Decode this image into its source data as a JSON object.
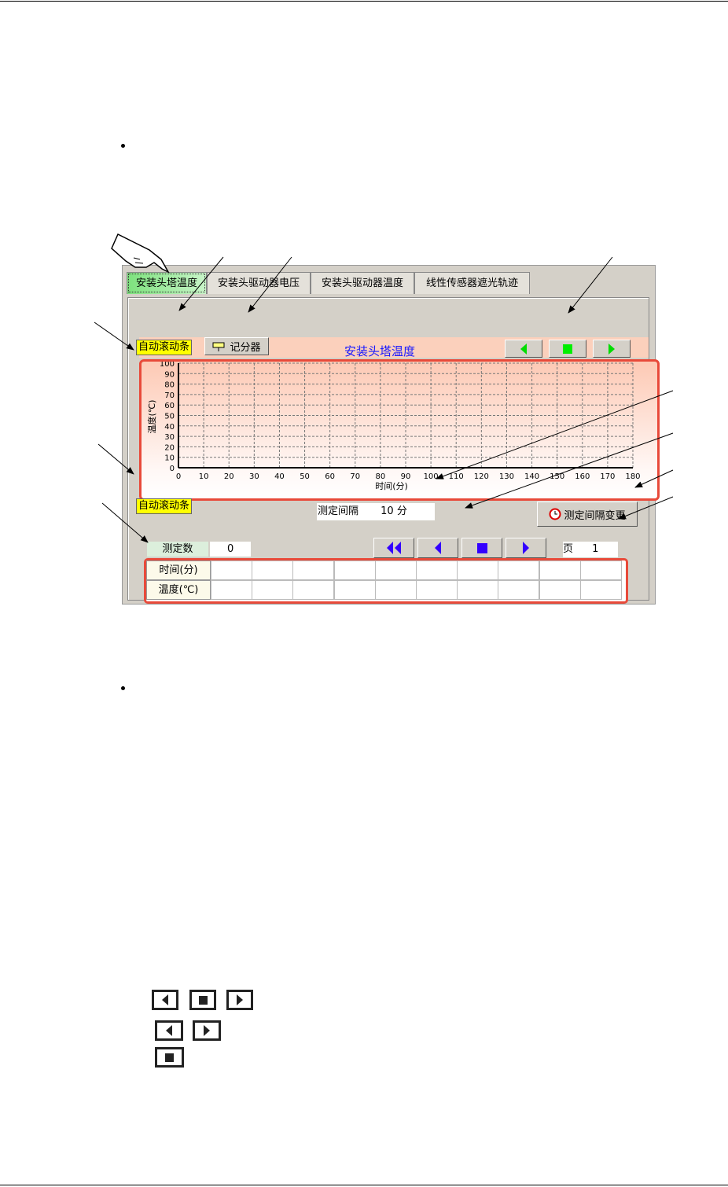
{
  "tabs": [
    {
      "label": "安装头塔温度",
      "active": true
    },
    {
      "label": "安装头驱动器电压"
    },
    {
      "label": "安装头驱动器温度"
    },
    {
      "label": "线性传感器遮光轨迹"
    }
  ],
  "toolbar": {
    "auto_scroll": "自动滚动条",
    "scorer": "记分器",
    "title": "安装头塔温度"
  },
  "chart_data": {
    "type": "line",
    "title": "安装头塔温度",
    "xlabel": "时间(分)",
    "ylabel": "温度(℃)",
    "xlim": [
      0,
      180
    ],
    "ylim": [
      0,
      100
    ],
    "xticks": [
      0,
      10,
      20,
      30,
      40,
      50,
      60,
      70,
      80,
      90,
      100,
      110,
      120,
      130,
      140,
      150,
      160,
      170,
      180
    ],
    "yticks": [
      0,
      10,
      20,
      30,
      40,
      50,
      60,
      70,
      80,
      90,
      100
    ],
    "grid": true,
    "series": []
  },
  "lower": {
    "auto_scroll": "自动滚动条",
    "interval_label": "测定间隔",
    "interval_value": "10 分",
    "interval_change": "测定间隔变更",
    "count_label": "测定数",
    "count_value": "0",
    "page_label": "页",
    "page_value": "1"
  },
  "table": {
    "rows": [
      {
        "header": "时间(分)",
        "cells": [
          "",
          "",
          "",
          "",
          "",
          "",
          "",
          "",
          "",
          ""
        ]
      },
      {
        "header": "温度(℃)",
        "cells": [
          "",
          "",
          "",
          "",
          "",
          "",
          "",
          "",
          "",
          ""
        ]
      }
    ]
  },
  "colors": {
    "nav_green": "#00ff00",
    "nav_blue": "#3300ff",
    "highlight": "#e84a3a",
    "yellow": "#ffff00"
  }
}
